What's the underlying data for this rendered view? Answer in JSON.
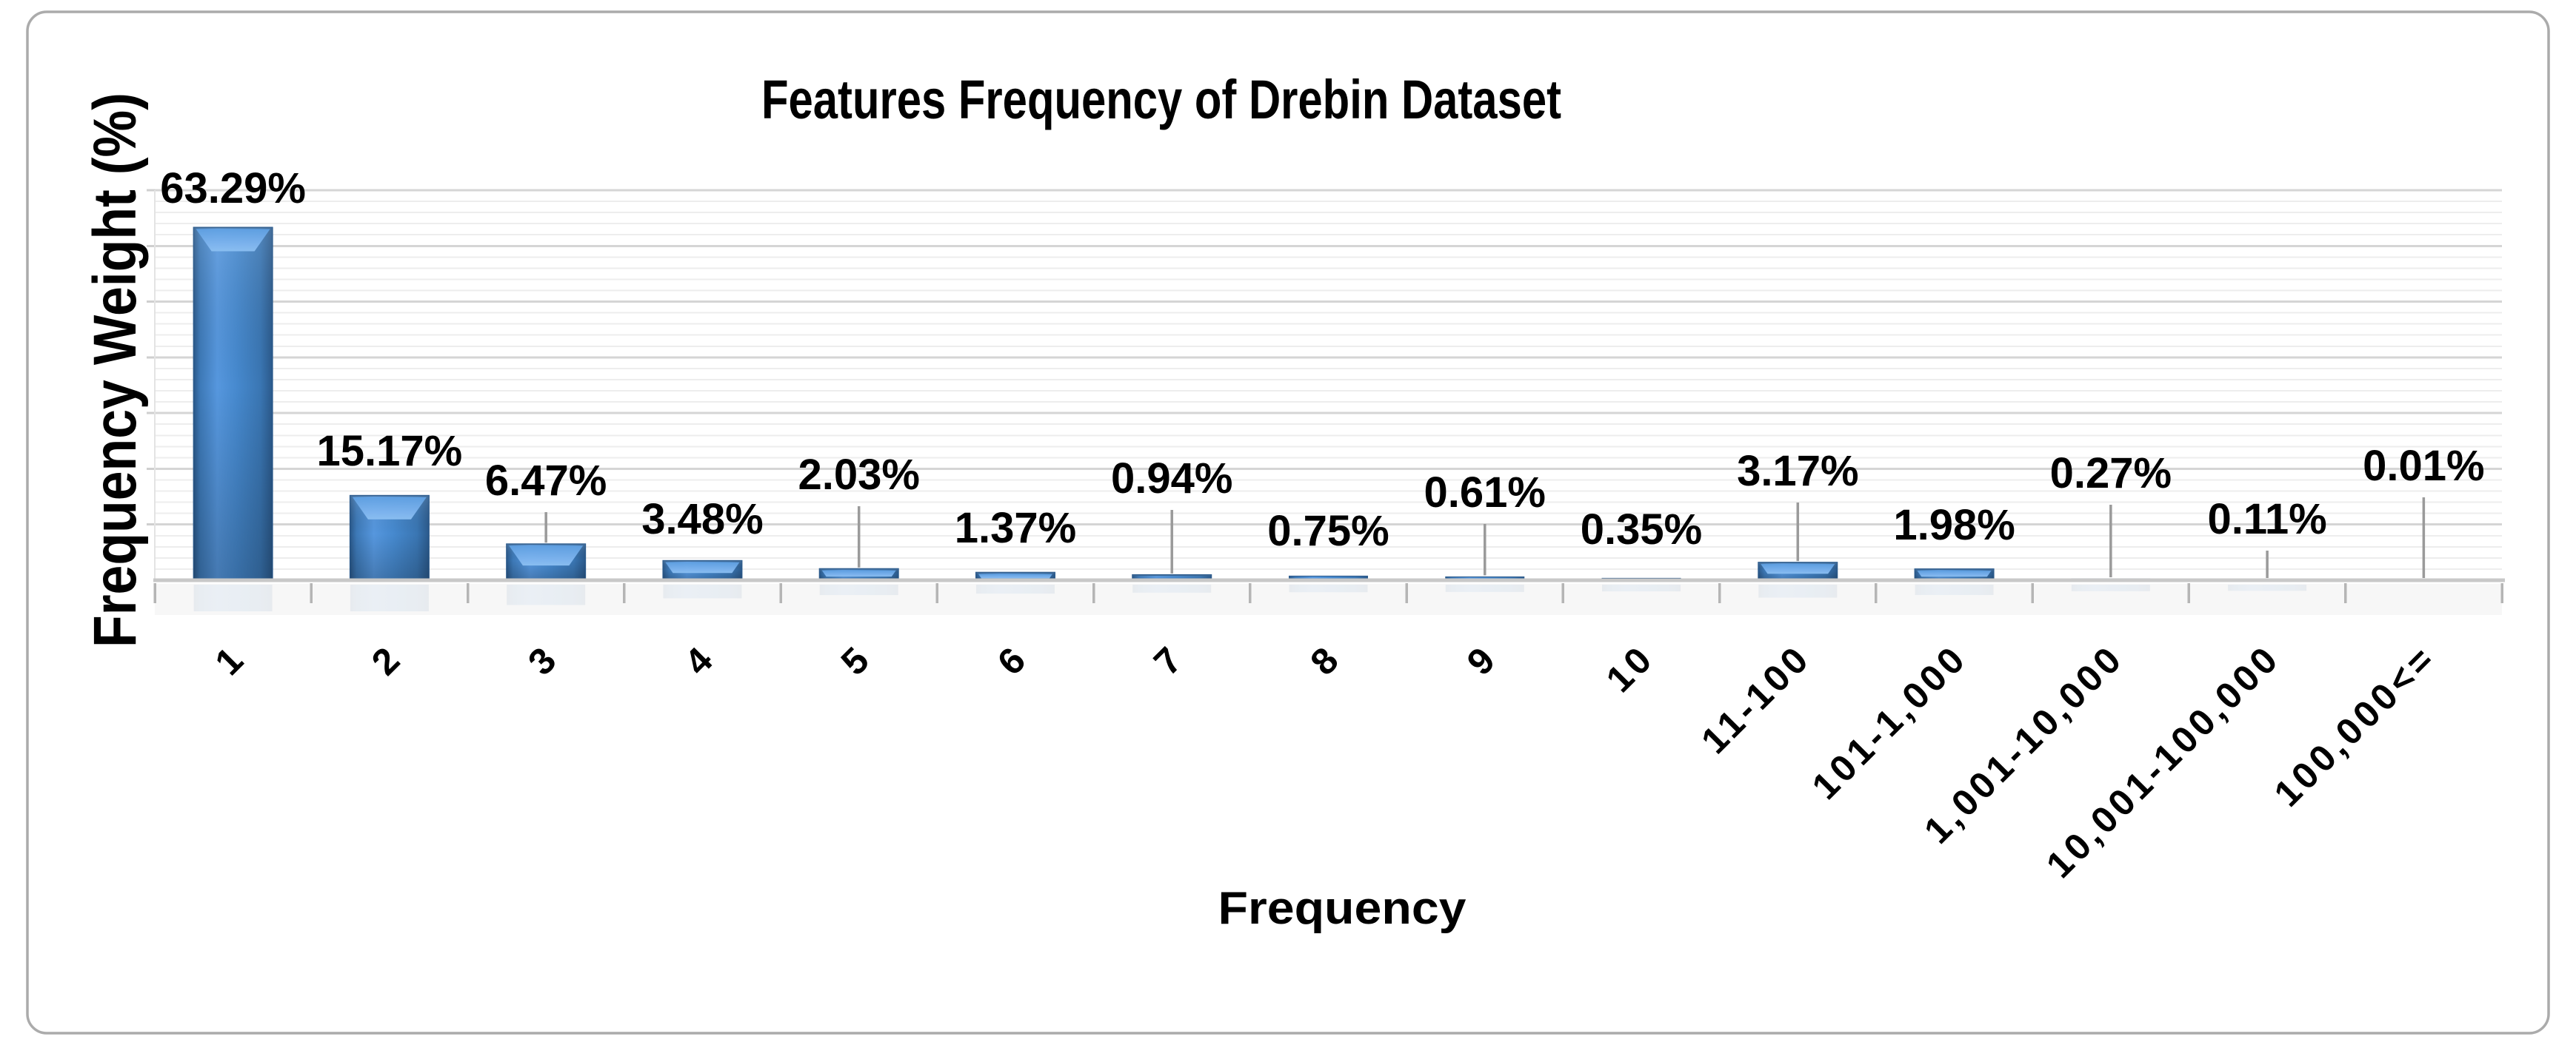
{
  "frame": {
    "background": "#FFFFFF",
    "border_color": "#ABABAB"
  },
  "chart_data": {
    "type": "bar",
    "title": "Features Frequency of Drebin Dataset",
    "xlabel": "Frequency",
    "ylabel": "Frequency Weight (%)",
    "legend_position": "none",
    "categories": [
      "1",
      "2",
      "3",
      "4",
      "5",
      "6",
      "7",
      "8",
      "9",
      "10",
      "11-100",
      "101-1,000",
      "1,001-10,000",
      "10,001-100,000",
      "100,000<="
    ],
    "values": [
      63.29,
      15.17,
      6.47,
      3.48,
      2.03,
      1.37,
      0.94,
      0.75,
      0.61,
      0.35,
      3.17,
      1.98,
      0.27,
      0.11,
      0.01
    ],
    "data_labels": [
      "63.29%",
      "15.17%",
      "6.47%",
      "3.48%",
      "2.03%",
      "1.37%",
      "0.94%",
      "0.75%",
      "0.61%",
      "0.35%",
      "3.17%",
      "1.98%",
      "0.27%",
      "0.11%",
      "0.01%"
    ],
    "ylim": [
      0,
      70
    ],
    "major_unit_pct": 10,
    "minor_unit_pct": 2,
    "grid": "horizontal major and minor gridlines, no y tick labels",
    "x_tick_rotation_deg": -45,
    "label_center_y": [
      253,
      608,
      648,
      700,
      640,
      712,
      645,
      716,
      664,
      714,
      635,
      708,
      638,
      700,
      628
    ],
    "leader_lines": [
      false,
      false,
      true,
      false,
      true,
      false,
      true,
      false,
      true,
      false,
      true,
      false,
      true,
      true,
      true
    ],
    "colors": {
      "bar_main": "#4689CE",
      "bar_edge_dark": "#2B5A8C",
      "bar_highlight": "#7FB5EF",
      "grid_major": "#D5D5D5",
      "grid_minor": "#EDEDED",
      "axis_line": "#C8C8C8",
      "tick": "#B5B5B5",
      "leader": "#9A9A9A",
      "text": "#000000"
    }
  }
}
